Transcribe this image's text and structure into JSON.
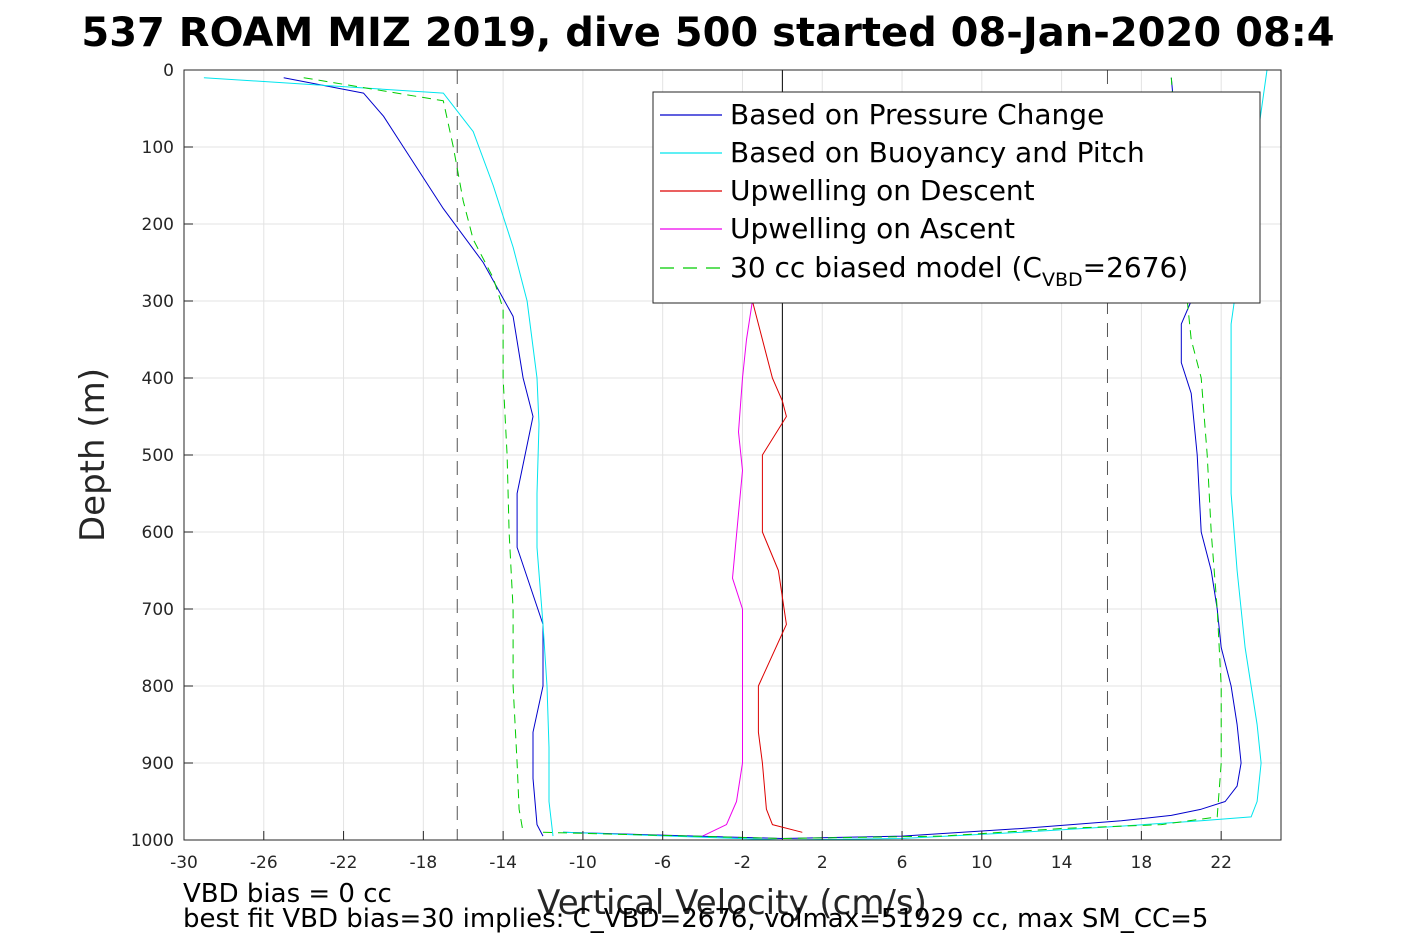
{
  "chart_data": {
    "type": "line",
    "title": "537 ROAM MIZ 2019, dive 500 started 08-Jan-2020 08:4",
    "xlabel": "Vertical Velocity (cm/s)",
    "ylabel": "Depth (m)",
    "xlim": [
      -30,
      25
    ],
    "ylim": [
      0,
      1000
    ],
    "y_reversed": true,
    "grid": true,
    "legend_position": "top-right",
    "xticks": [
      -30,
      -26,
      -22,
      -18,
      -14,
      -10,
      -6,
      -2,
      2,
      6,
      10,
      14,
      18,
      22
    ],
    "yticks": [
      0,
      100,
      200,
      300,
      400,
      500,
      600,
      700,
      800,
      900,
      1000
    ],
    "reference_lines": [
      {
        "x": -16.3,
        "style": "dashed",
        "color": "#000000"
      },
      {
        "x": 0,
        "style": "solid",
        "color": "#000000"
      },
      {
        "x": 16.3,
        "style": "dashed",
        "color": "#000000"
      }
    ],
    "series": [
      {
        "name": "Based on Pressure Change",
        "color": "#0000cc",
        "style": "solid",
        "x": [
          -25,
          -21,
          -20,
          -19,
          -17,
          -15,
          -13.5,
          -13,
          -12.5,
          -13.3,
          -13.3,
          -12,
          -12,
          -12.5,
          -12.5,
          -12.3,
          -12
        ],
        "y": [
          10,
          30,
          60,
          100,
          180,
          250,
          320,
          400,
          450,
          550,
          620,
          720,
          800,
          860,
          920,
          980,
          995
        ]
      },
      {
        "name": "Based on Buoyancy and Pitch",
        "color": "#00e5ee",
        "style": "solid",
        "x": [
          -29,
          -17,
          -15.5,
          -14.5,
          -13.5,
          -12.8,
          -12.3,
          -12.2,
          -12.3,
          -12.3,
          -12,
          -11.8,
          -11.7,
          -11.7,
          -11.5
        ],
        "y": [
          10,
          30,
          80,
          150,
          230,
          300,
          400,
          460,
          550,
          620,
          720,
          800,
          880,
          950,
          995
        ]
      },
      {
        "name": "Upwelling on Descent",
        "color": "#dd0000",
        "style": "solid",
        "x": [
          -1.5,
          -1,
          -0.5,
          0,
          0.2,
          -1,
          -1,
          -0.2,
          0.2,
          -1.2,
          -1.2,
          -1,
          -0.8,
          -0.5,
          1
        ],
        "y": [
          300,
          350,
          400,
          430,
          450,
          500,
          600,
          650,
          720,
          800,
          860,
          900,
          960,
          980,
          990
        ]
      },
      {
        "name": "Upwelling on Ascent",
        "color": "#ee00ee",
        "style": "solid",
        "x": [
          -1.5,
          -1.8,
          -2,
          -2.2,
          -2,
          -2.5,
          -2,
          -2,
          -2,
          -2,
          -2.3,
          -2.8,
          -4
        ],
        "y": [
          300,
          350,
          400,
          470,
          520,
          660,
          700,
          800,
          850,
          900,
          950,
          980,
          995
        ]
      },
      {
        "name": "30 cc biased model (C_VBD=2676)",
        "color": "#00cc00",
        "style": "dashed",
        "x": [
          -24,
          -17,
          -16.5,
          -16,
          -15.5,
          -14.5,
          -14,
          -14,
          -13.8,
          -13.7,
          -13.5,
          -13.5,
          -13.3,
          -13.2,
          -13
        ],
        "y": [
          10,
          40,
          100,
          170,
          220,
          270,
          310,
          400,
          500,
          600,
          700,
          800,
          900,
          960,
          990
        ]
      },
      {
        "name": "",
        "color": "#0000cc",
        "style": "solid",
        "x": [
          -11,
          0,
          6,
          12,
          17,
          19.5,
          21,
          22.2,
          22.8,
          23,
          22.8,
          22.5,
          22,
          21.8,
          21.5,
          21,
          20.8,
          20.5,
          20,
          20,
          20.5,
          19.5
        ],
        "y": [
          990,
          998,
          995,
          985,
          975,
          968,
          960,
          950,
          930,
          900,
          850,
          800,
          750,
          700,
          650,
          600,
          500,
          420,
          380,
          330,
          300,
          10
        ]
      },
      {
        "name": "",
        "color": "#00e5ee",
        "style": "solid",
        "x": [
          -11,
          0,
          6,
          12,
          17,
          21,
          23.5,
          23.8,
          24,
          23.8,
          23.5,
          23.2,
          23,
          22.8,
          22.5,
          22.5,
          22.5,
          24.3
        ],
        "y": [
          990,
          1000,
          998,
          990,
          982,
          975,
          970,
          950,
          900,
          850,
          800,
          750,
          700,
          650,
          550,
          450,
          330,
          0
        ]
      },
      {
        "name": "",
        "color": "#00cc00",
        "style": "dashed",
        "x": [
          -12,
          0,
          8,
          14,
          19,
          21.8,
          22,
          22,
          21.8,
          21.5,
          21.3,
          21,
          20.5,
          20.3,
          19.5
        ],
        "y": [
          990,
          998,
          995,
          985,
          980,
          970,
          900,
          800,
          700,
          600,
          500,
          400,
          350,
          300,
          10
        ]
      }
    ],
    "footnotes": [
      "VBD bias = 0 cc",
      "best fit VBD bias=30 implies: C_VBD=2676, volmax=51929 cc, max SM_CC=5"
    ]
  },
  "legend": {
    "items": [
      {
        "label": "Based on Pressure Change",
        "color": "#0000cc",
        "style": "solid"
      },
      {
        "label": "Based on Buoyancy and Pitch",
        "color": "#00e5ee",
        "style": "solid"
      },
      {
        "label": "Upwelling on Descent",
        "color": "#dd0000",
        "style": "solid"
      },
      {
        "label": "Upwelling on Ascent",
        "color": "#ee00ee",
        "style": "solid"
      },
      {
        "label_main": "30 cc biased model (C",
        "label_sub": "VBD",
        "label_end": "=2676)",
        "color": "#00cc00",
        "style": "dashed"
      }
    ]
  }
}
